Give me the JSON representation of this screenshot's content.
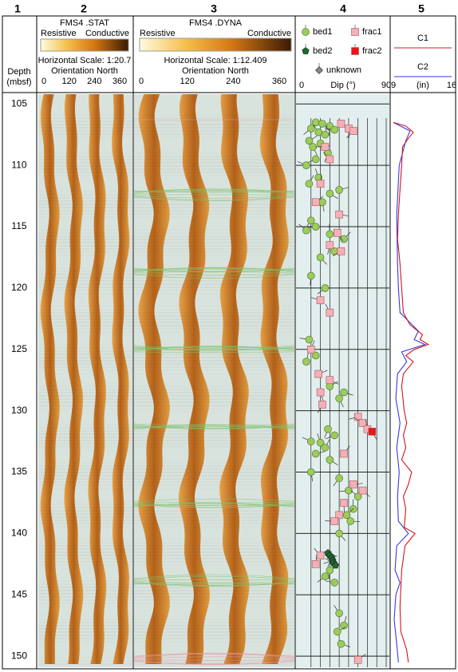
{
  "columns": [
    "1",
    "2",
    "3",
    "4",
    "5"
  ],
  "depth": {
    "label": "Depth",
    "unit": "(mbsf)",
    "range": [
      104.2,
      150.9
    ],
    "ticks": [
      105,
      110,
      115,
      120,
      125,
      130,
      135,
      140,
      145,
      150
    ]
  },
  "track2": {
    "title": "FMS4 .STAT",
    "left": "Resistive",
    "right": "Conductive",
    "scale": "Horizontal Scale: 1:20.7",
    "orientation": "Orientation North",
    "xlim": [
      0,
      360
    ],
    "xticks": [
      0,
      120,
      240,
      360
    ]
  },
  "track3": {
    "title": "FMS4 .DYNA",
    "left": "Resistive",
    "right": "Conductive",
    "scale": "Horizontal Scale:  1:12.409",
    "orientation": "Orientation North",
    "xlim": [
      0,
      360
    ],
    "xticks": [
      0,
      120,
      240,
      360
    ]
  },
  "track4": {
    "axis_label": "Dip (°)",
    "xlim": [
      0,
      90
    ],
    "xticks": [
      0,
      90
    ],
    "xgrid": [
      10,
      20,
      30,
      40,
      50,
      60,
      70,
      80,
      90
    ],
    "series": [
      {
        "name": "bed1",
        "color": "#9ccc5a",
        "marker": "circle",
        "depth": [
          106.5,
          106.6,
          106.8,
          107,
          107.1,
          107.3,
          107.5,
          108,
          108.2,
          108.5,
          109,
          109.5,
          110,
          111,
          111.5,
          112,
          112.3,
          113,
          114.5,
          115,
          115.3,
          115.6,
          116,
          117,
          117.5,
          119,
          120,
          124.2,
          125.5,
          126,
          128,
          128.5,
          129,
          131.5,
          132,
          132.5,
          132.6,
          133,
          133.5,
          134,
          135,
          135.5,
          136.5,
          137,
          138,
          138.5,
          139,
          140,
          143,
          143.5,
          144,
          146.5,
          147.5,
          148,
          149
        ],
        "dip": [
          15,
          22,
          30,
          10,
          35,
          18,
          25,
          8,
          20,
          12,
          28,
          15,
          5,
          18,
          8,
          40,
          30,
          22,
          10,
          15,
          5,
          30,
          45,
          35,
          20,
          10,
          25,
          8,
          15,
          5,
          30,
          45,
          40,
          28,
          35,
          10,
          20,
          25,
          15,
          30,
          10,
          40,
          50,
          60,
          55,
          48,
          52,
          40,
          30,
          25,
          35,
          40,
          45,
          38,
          42
        ]
      },
      {
        "name": "bed2",
        "color": "#1a6b2a",
        "marker": "pentagon",
        "depth": [
          141.6,
          141.8,
          142,
          142.2,
          142.4,
          142.6
        ],
        "dip": [
          28,
          30,
          32,
          33,
          34,
          36
        ]
      },
      {
        "name": "frac1",
        "color": "#f4b0b8",
        "marker": "square",
        "depth": [
          106.6,
          107,
          107.2,
          108.5,
          109.5,
          111.5,
          113,
          114,
          115.5,
          116.5,
          117,
          121,
          122,
          125,
          127,
          127.5,
          128.5,
          129.5,
          130.5,
          131,
          131.5,
          133.5,
          136,
          136.5,
          137.5,
          138.5,
          139,
          141.8,
          142.5,
          150.3
        ],
        "dip": [
          42,
          50,
          55,
          25,
          30,
          20,
          15,
          40,
          38,
          30,
          42,
          20,
          30,
          10,
          18,
          30,
          20,
          22,
          60,
          65,
          70,
          45,
          55,
          65,
          45,
          40,
          35,
          20,
          15,
          60
        ]
      },
      {
        "name": "frac2",
        "color": "#e8161b",
        "marker": "square",
        "depth": [
          131.7
        ],
        "dip": [
          75
        ]
      },
      {
        "name": "unknown",
        "color": "#888888",
        "marker": "diamond",
        "depth": [],
        "dip": []
      }
    ]
  },
  "track5": {
    "unit": "(in)",
    "xlim": [
      9,
      16
    ],
    "xticks": [
      9,
      16
    ],
    "curves": [
      {
        "name": "C1",
        "color": "#d4141c",
        "depth": [
          106.5,
          106.8,
          107.3,
          107.8,
          108.5,
          110,
          112,
          114,
          116,
          118,
          120,
          122,
          123,
          123.8,
          124.2,
          124.6,
          125,
          125.5,
          126,
          127,
          128,
          130,
          131,
          132,
          133,
          134,
          135,
          136,
          137,
          138,
          139.5,
          140,
          141,
          143,
          146,
          148,
          149.5,
          150.5
        ],
        "values": [
          9,
          10.5,
          11.4,
          10.8,
          10.1,
          10,
          9.8,
          9.6,
          9.5,
          9.8,
          10,
          10.2,
          11,
          12.5,
          12.2,
          13.2,
          11.5,
          10.5,
          11.4,
          10.2,
          10,
          10.3,
          10.6,
          10.2,
          10.5,
          10,
          11.2,
          10.8,
          10.2,
          10.5,
          10.3,
          11.6,
          10.4,
          10,
          9.8,
          9.9,
          10.6,
          10.8
        ]
      },
      {
        "name": "C2",
        "color": "#3a3ad8",
        "depth": [
          106.5,
          107.2,
          108,
          110,
          114,
          118,
          120,
          122,
          123.5,
          124.2,
          124.6,
          125.2,
          126,
          127,
          129,
          131,
          133,
          135,
          137,
          139,
          140,
          141,
          143,
          144,
          145,
          147,
          149,
          150.5
        ],
        "values": [
          9,
          11,
          10.5,
          9.7,
          9.4,
          9.5,
          9.6,
          9.8,
          12,
          11.5,
          12.8,
          10,
          10.6,
          9.5,
          9.3,
          9.8,
          9.4,
          9.7,
          9.5,
          9.6,
          10.8,
          9.4,
          9.2,
          9.8,
          9.3,
          9.1,
          9.4,
          9.6
        ]
      }
    ]
  }
}
